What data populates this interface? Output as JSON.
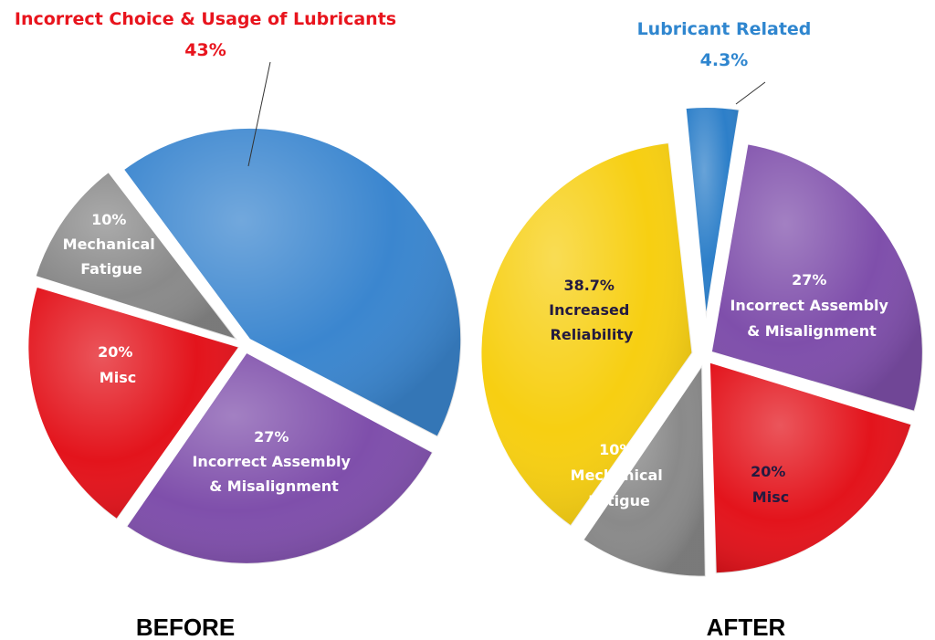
{
  "chart_data": [
    {
      "type": "pie",
      "title": "BEFORE",
      "slices": [
        {
          "label_lines": [
            "Incorrect Choice & Usage of Lubricants",
            "43%"
          ],
          "value": 43,
          "color": "#3b86cf",
          "callout": true
        },
        {
          "label_lines": [
            "27%",
            "Incorrect Assembly",
            "& Misalignment"
          ],
          "value": 27,
          "color": "#7f4fab"
        },
        {
          "label_lines": [
            "20%",
            "Misc"
          ],
          "value": 20,
          "color": "#e3141c"
        },
        {
          "label_lines": [
            "10%",
            "Mechanical",
            "Fatigue"
          ],
          "value": 10,
          "color": "#8a8a8a"
        }
      ]
    },
    {
      "type": "pie",
      "title": "AFTER",
      "slices": [
        {
          "label_lines": [
            "Lubricant Related",
            "4.3%"
          ],
          "value": 4.3,
          "color": "#2d7fc9",
          "callout": true,
          "exploded": true
        },
        {
          "label_lines": [
            "27%",
            "Incorrect Assembly",
            "& Misalignment"
          ],
          "value": 27,
          "color": "#7f4fab"
        },
        {
          "label_lines": [
            "20%",
            "Misc"
          ],
          "value": 20,
          "color": "#e3141c"
        },
        {
          "label_lines": [
            "10%",
            "Mechanical",
            "Fatigue"
          ],
          "value": 10,
          "color": "#8a8a8a"
        },
        {
          "label_lines": [
            "38.7%",
            "Increased",
            "Reliability"
          ],
          "value": 38.7,
          "color": "#f7cf12"
        }
      ]
    }
  ]
}
